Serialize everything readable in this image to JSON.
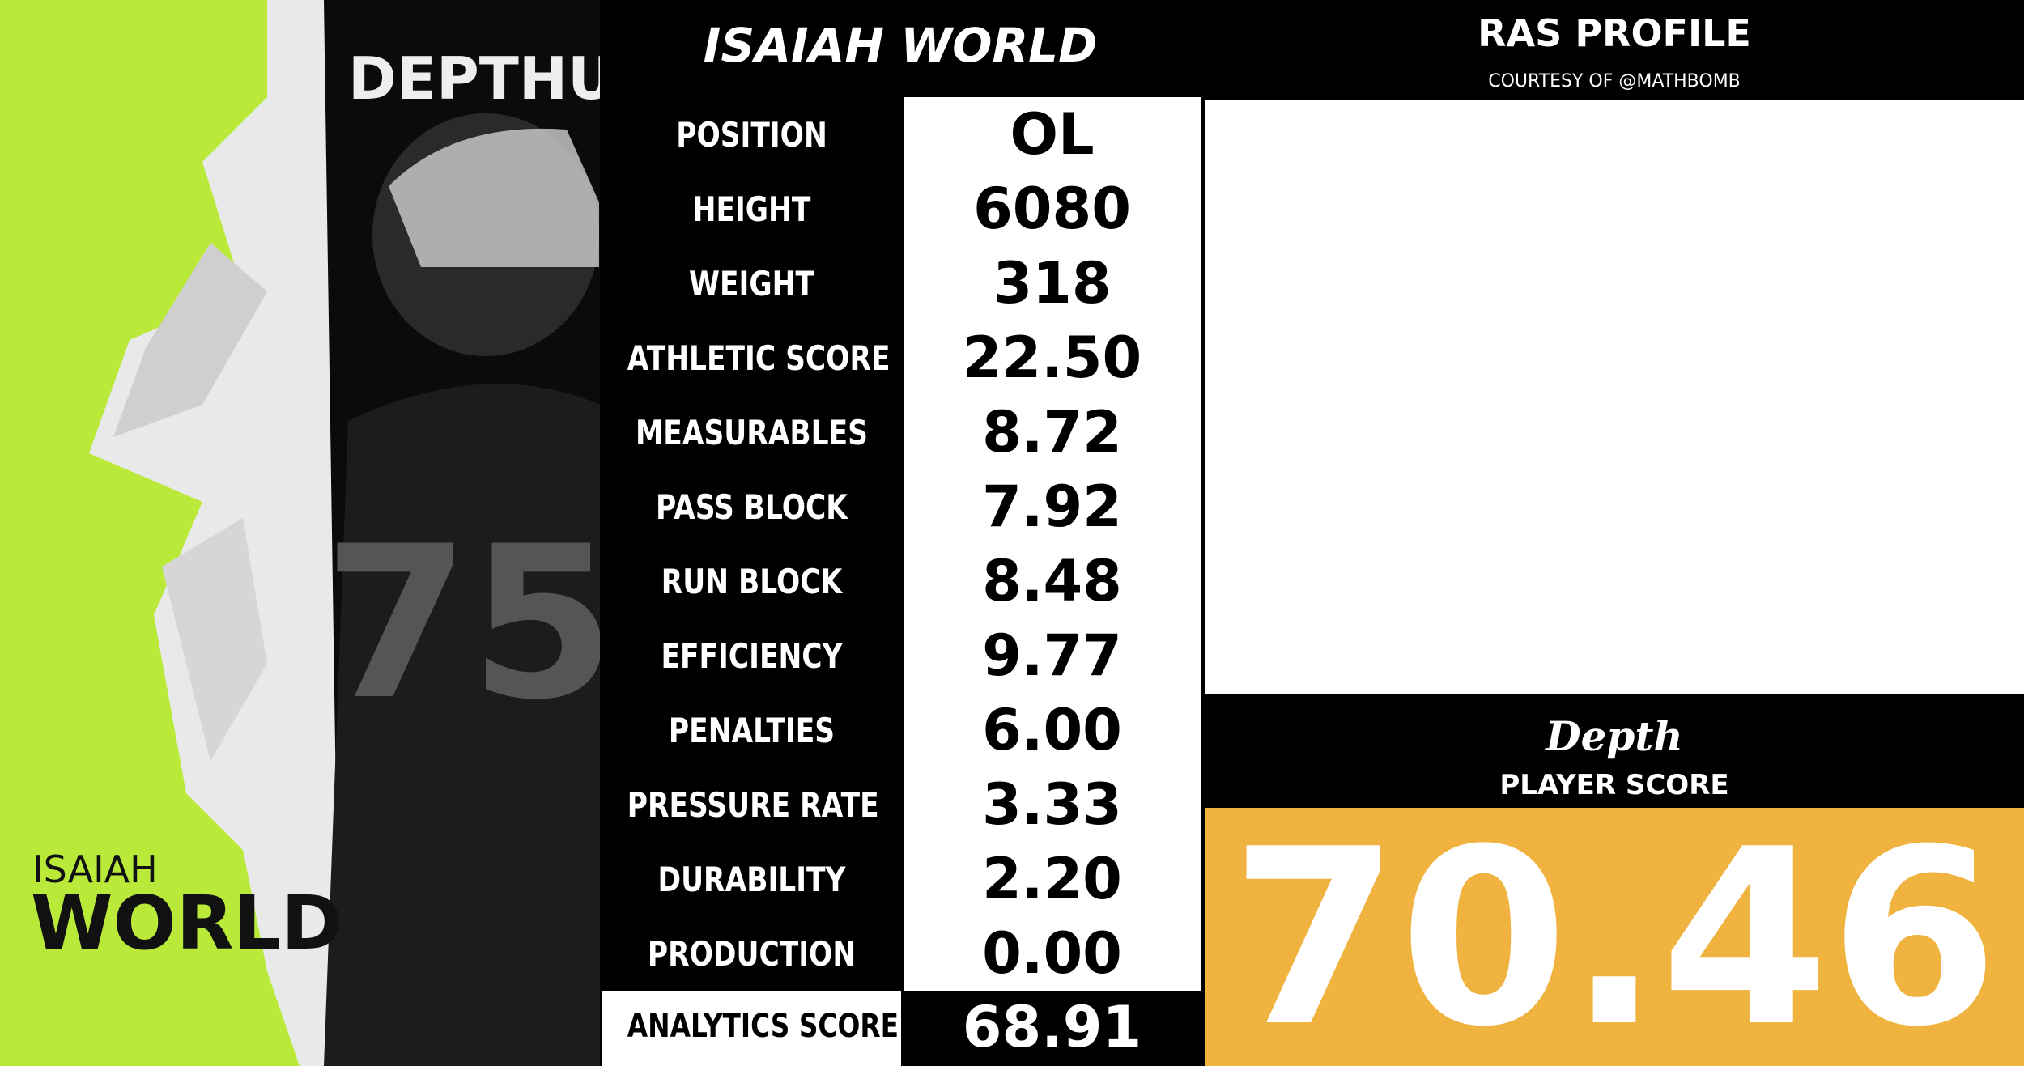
{
  "header": {
    "title": "ISAIAH WORLD",
    "logo": "DEPTHU"
  },
  "player_card": {
    "first_name": "ISAIAH",
    "last_name": "WORLD"
  },
  "stats": [
    {
      "label": "POSITION",
      "value": "OL"
    },
    {
      "label": "HEIGHT",
      "value": "6080"
    },
    {
      "label": "WEIGHT",
      "value": "318"
    },
    {
      "label": "ATHLETIC SCORE",
      "value": "22.50"
    },
    {
      "label": "MEASURABLES",
      "value": "8.72"
    },
    {
      "label": "PASS BLOCK",
      "value": "7.92"
    },
    {
      "label": "RUN BLOCK",
      "value": "8.48"
    },
    {
      "label": "EFFICIENCY",
      "value": "9.77"
    },
    {
      "label": "PENALTIES",
      "value": "6.00"
    },
    {
      "label": "PRESSURE RATE",
      "value": "3.33"
    },
    {
      "label": "DURABILITY",
      "value": "2.20"
    },
    {
      "label": "PRODUCTION",
      "value": "0.00"
    }
  ],
  "analytics": {
    "label": "ANALYTICS SCORE",
    "value": "68.91"
  },
  "ras": {
    "title": "RAS PROFILE",
    "credit": "COURTESY OF @MATHBOMB"
  },
  "player_score": {
    "brand": "Depth",
    "label": "PLAYER SCORE",
    "value": "70.46"
  }
}
